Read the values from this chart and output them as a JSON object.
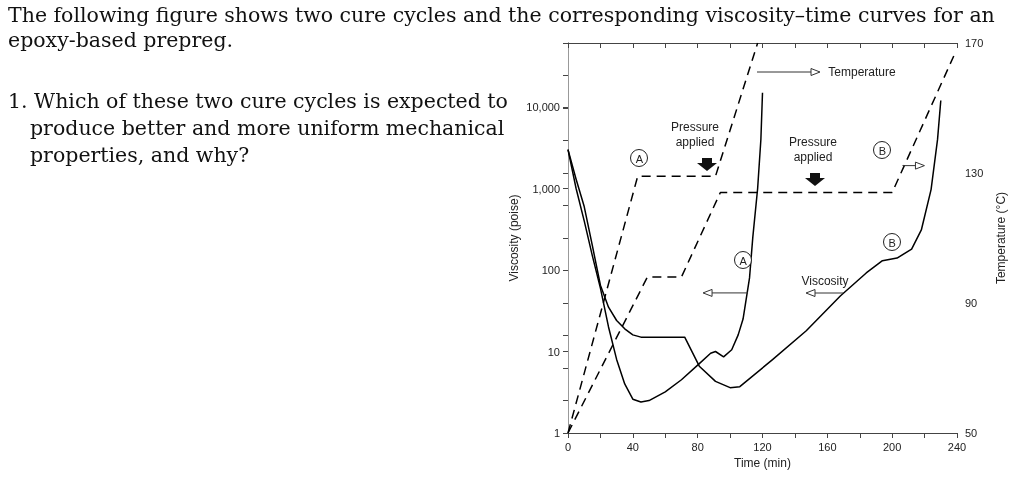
{
  "chart_data": {
    "type": "line",
    "title": "The following figure shows two cure cycles and the corresponding viscosity–time curves for an epoxy-based prepreg.",
    "subtitle": "1. Which of these two cure cycles is expected to produce better and more uniform mechanical properties, and why?",
    "xlabel": "Time (min)",
    "ylabel": "Viscosity (poise)",
    "y2label": "Temperature (°C)",
    "series": [
      {
        "axis": "y2",
        "line_style": "dashed",
        "color": "#000000",
        "x": [
          0,
          43,
          91,
          117
        ],
        "values": [
          50,
          129,
          129,
          170
        ]
      },
      {
        "axis": "y2",
        "line_style": "dashed",
        "color": "#000000",
        "x": [
          0,
          49,
          70,
          94,
          200,
          238
        ],
        "values": [
          50,
          98,
          98,
          124,
          124,
          166
        ]
      },
      {
        "line_style": "solid",
        "color": "#000000",
        "x": [
          0,
          5,
          10,
          15,
          20,
          25,
          30,
          35,
          40,
          45,
          50,
          60,
          70,
          80,
          88,
          91,
          96,
          101,
          105,
          108,
          112,
          114,
          117,
          119,
          120
        ],
        "values": [
          3000,
          1000,
          400,
          150,
          60,
          20,
          8,
          4,
          2.6,
          2.4,
          2.5,
          3.2,
          4.5,
          6.8,
          9.5,
          10,
          8.6,
          10.5,
          16,
          25,
          80,
          250,
          1000,
          4000,
          15000
        ]
      },
      {
        "line_style": "solid",
        "color": "#000000",
        "x": [
          0,
          5,
          10,
          15,
          20,
          25,
          30,
          35,
          40,
          45,
          72,
          81,
          91,
          100,
          106,
          126,
          147,
          168,
          184,
          194,
          203,
          212,
          218,
          224,
          228,
          230
        ],
        "values": [
          3000,
          1300,
          600,
          200,
          65,
          35,
          24,
          19,
          16,
          15,
          15,
          6.6,
          4.3,
          3.6,
          3.7,
          7.9,
          18,
          48,
          92,
          130,
          140,
          180,
          310,
          970,
          4000,
          12000
        ]
      }
    ],
    "xlim": [
      0,
      240
    ],
    "xticks": [
      0,
      {
        "value": 20,
        "label": null
      },
      40,
      {
        "value": 60,
        "label": null
      },
      80,
      {
        "value": 100,
        "label": null
      },
      120,
      {
        "value": 140,
        "label": null
      },
      160,
      {
        "value": 180,
        "label": null
      },
      200,
      {
        "value": 220,
        "label": null
      },
      240
    ],
    "log": "y",
    "ylim": [
      1,
      61000
    ],
    "yticks": [
      1,
      10,
      100,
      {
        "value": 1000,
        "label": "1,000"
      },
      {
        "value": 10000,
        "label": "10,000"
      }
    ],
    "y2lim": [
      50,
      170
    ],
    "y2ticks": [
      50,
      {
        "value": 60,
        "label": null
      },
      {
        "value": 70,
        "label": null
      },
      {
        "value": 80,
        "label": null
      },
      90,
      {
        "value": 100,
        "label": null
      },
      {
        "value": 110,
        "label": null
      },
      {
        "value": 120,
        "label": null
      },
      130,
      {
        "value": 140,
        "label": null
      },
      {
        "value": 150,
        "label": null
      },
      {
        "value": 160,
        "label": null
      },
      170
    ],
    "grid": false,
    "marker": "none",
    "annotations": [
      "Temperature",
      "Pressure applied",
      "Pressure applied",
      "Viscosity",
      {
        "text": "A",
        "x": 44,
        "y": 2400
      },
      {
        "text": "A",
        "x": 108,
        "y": 133
      },
      {
        "text": "B",
        "x": 194,
        "y": 3000
      },
      {
        "text": "B",
        "x": 200,
        "y": 220
      }
    ]
  }
}
